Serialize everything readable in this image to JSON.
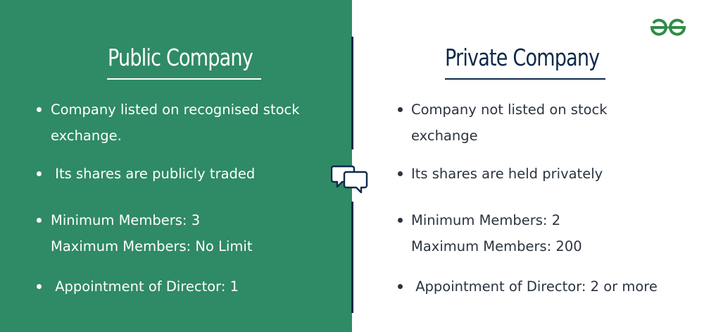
{
  "left": {
    "title": "Public Company",
    "items": [
      {
        "line1": "Company listed on recognised stock",
        "line2": "exchange."
      },
      {
        "line1": " Its shares are publicly traded"
      },
      {
        "line1": "Minimum Members: 3",
        "line2": "Maximum Members: No Limit"
      },
      {
        "line1": " Appointment of Director: 1"
      }
    ]
  },
  "right": {
    "title": "Private Company",
    "items": [
      {
        "line1": "Company not listed on stock",
        "line2": "exchange"
      },
      {
        "line1": "Its shares are held privately"
      },
      {
        "line1": "Minimum Members: 2",
        "line2": "Maximum Members: 200"
      },
      {
        "line1": " Appointment of Director: 2 or more"
      }
    ]
  },
  "icons": {
    "center": "speech-bubbles-icon",
    "logo": "gfg-logo-icon"
  },
  "colors": {
    "left_bg": "#2f8a66",
    "navy": "#0e2a4a",
    "logo_green": "#2f8d46"
  }
}
